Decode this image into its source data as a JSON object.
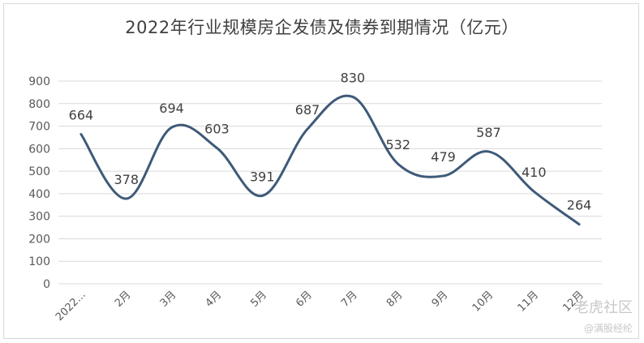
{
  "chart_data": {
    "type": "line",
    "title": "2022年行业规模房企发债及债券到期情况（亿元）",
    "categories": [
      "2022...",
      "2月",
      "3月",
      "4月",
      "5月",
      "6月",
      "7月",
      "8月",
      "9月",
      "10月",
      "11月",
      "12月"
    ],
    "series": [
      {
        "values": [
          664,
          378,
          694,
          603,
          391,
          687,
          830,
          532,
          479,
          587,
          410,
          264
        ]
      }
    ],
    "ylim": [
      0,
      900
    ],
    "yticks": [
      0,
      100,
      200,
      300,
      400,
      500,
      600,
      700,
      800,
      900
    ],
    "grid": true,
    "colors": {
      "line": "#3e5a78",
      "grid": "#d9d9d9",
      "text": "#595959"
    }
  },
  "watermark": {
    "line1": "老虎社区",
    "line2": "@满股经纶"
  }
}
